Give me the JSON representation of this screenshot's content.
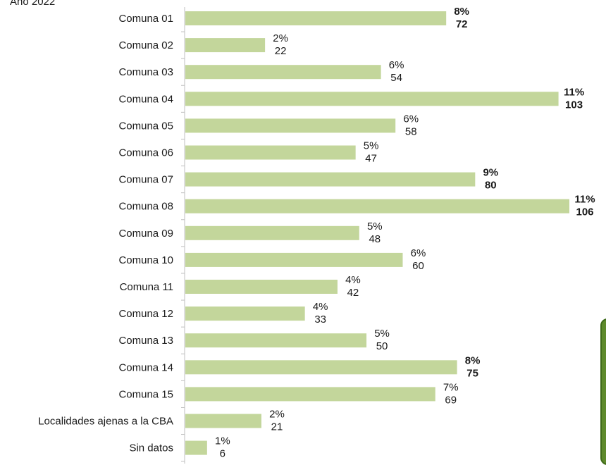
{
  "subtitle": "Año 2022",
  "colors": {
    "bar": "#c3d69b",
    "axis": "#bfbfbf",
    "text": "#1a1a1a",
    "panel": "#5e8a2c"
  },
  "chart_data": {
    "type": "bar",
    "orientation": "horizontal",
    "categories": [
      "Comuna 01",
      "Comuna 02",
      "Comuna 03",
      "Comuna 04",
      "Comuna 05",
      "Comuna 06",
      "Comuna 07",
      "Comuna 08",
      "Comuna 09",
      "Comuna 10",
      "Comuna 11",
      "Comuna 12",
      "Comuna 13",
      "Comuna 14",
      "Comuna 15",
      "Localidades ajenas a la CBA",
      "Sin datos"
    ],
    "values": [
      72,
      22,
      54,
      103,
      58,
      47,
      80,
      106,
      48,
      60,
      42,
      33,
      50,
      75,
      69,
      21,
      6
    ],
    "percentages": [
      "8%",
      "2%",
      "6%",
      "11%",
      "6%",
      "5%",
      "9%",
      "11%",
      "5%",
      "6%",
      "4%",
      "4%",
      "5%",
      "8%",
      "7%",
      "2%",
      "1%"
    ],
    "bold_labels": [
      true,
      false,
      false,
      true,
      false,
      false,
      true,
      true,
      false,
      false,
      false,
      false,
      false,
      true,
      false,
      false,
      false
    ],
    "xlim": [
      0,
      106
    ],
    "grid": false,
    "legend": "none"
  }
}
